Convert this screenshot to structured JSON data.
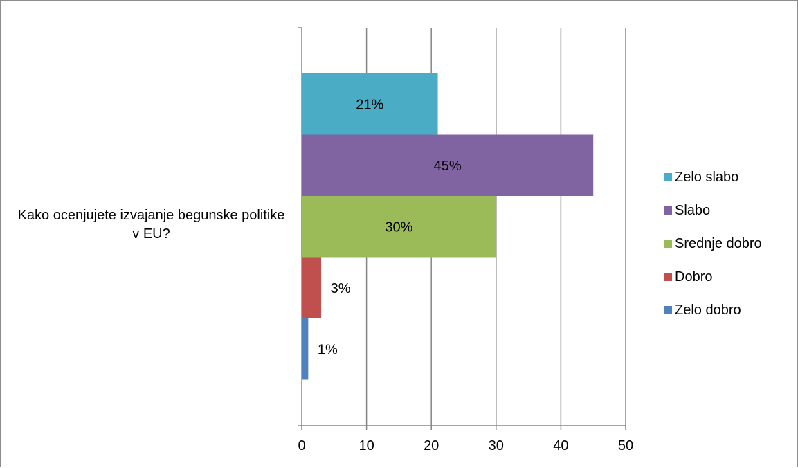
{
  "chart_data": {
    "type": "bar",
    "orientation": "horizontal",
    "categories": [
      "Kako ocenjujete izvajanje begunske politike v EU?"
    ],
    "series": [
      {
        "name": "Zelo slabo",
        "values": [
          21
        ],
        "data_label": "21%",
        "color": "#4bacc6"
      },
      {
        "name": "Slabo",
        "values": [
          45
        ],
        "data_label": "45%",
        "color": "#8064a2"
      },
      {
        "name": "Srednje dobro",
        "values": [
          30
        ],
        "data_label": "30%",
        "color": "#9bbb59"
      },
      {
        "name": "Dobro",
        "values": [
          3
        ],
        "data_label": "3%",
        "color": "#c0504d"
      },
      {
        "name": "Zelo dobro",
        "values": [
          1
        ],
        "data_label": "1%",
        "color": "#4f81bd"
      }
    ],
    "xlim": [
      0,
      50
    ],
    "xticks": [
      0,
      10,
      20,
      30,
      40,
      50
    ],
    "grid": "vertical",
    "legend_position": "right"
  }
}
